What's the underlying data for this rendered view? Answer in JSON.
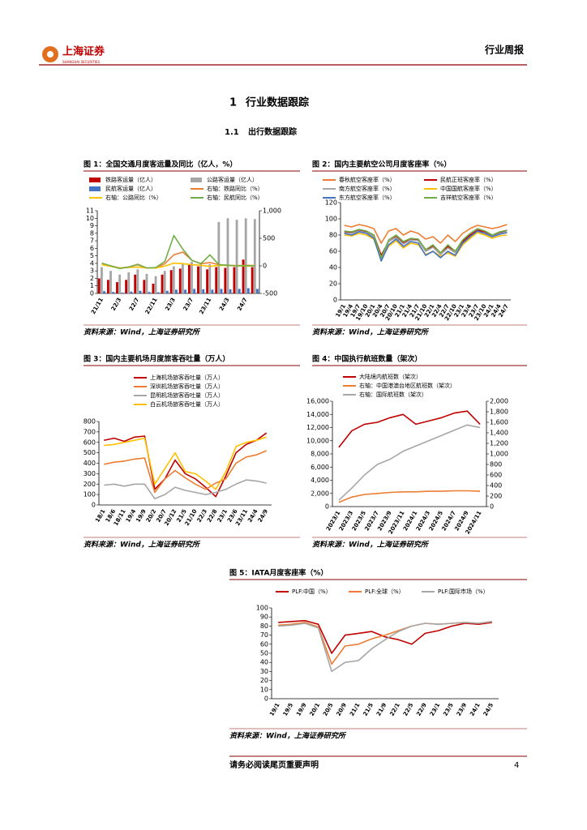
{
  "header": {
    "brand": "上海证券",
    "brand_en": "SHANGHAI SECURITIES",
    "report_type": "行业周报"
  },
  "heading1": {
    "number": "1",
    "text": "行业数据跟踪"
  },
  "heading2": {
    "number": "1.1",
    "text": "出行数据跟踪"
  },
  "figures": [
    {
      "title": "图 1：全国交通月度客运量及同比（亿人，%）",
      "source": "资料来源：Wind，上海证券研究所",
      "chart": {
        "type": "combo",
        "categories": [
          "21/11",
          null,
          "22/3",
          null,
          "22/7",
          null,
          "22/11",
          null,
          "23/3",
          null,
          "23/7",
          null,
          "23/11",
          null,
          "24/3",
          null,
          "24/7",
          null
        ],
        "series": [
          {
            "name": "铁路客运量（亿人）",
            "kind": "bar",
            "color": "#c00000",
            "values": [
              2.0,
              1.8,
              1.5,
              1.8,
              2.5,
              1.8,
              1.3,
              2.5,
              3.1,
              3.3,
              3.8,
              3.6,
              3.2,
              3.5,
              3.4,
              3.5,
              4.5,
              3.5
            ]
          },
          {
            "name": "公路客运量（亿人）",
            "kind": "bar",
            "color": "#a6a6a6",
            "values": [
              3.5,
              3.0,
              2.5,
              2.8,
              3.2,
              2.6,
              2.3,
              3.0,
              3.6,
              3.9,
              4.2,
              4.1,
              3.9,
              9.5,
              10,
              9.8,
              10,
              9.9
            ]
          },
          {
            "name": "民航客运量（亿人）",
            "kind": "bar",
            "color": "#4472c4",
            "values": [
              0.3,
              0.2,
              0.1,
              0.25,
              0.35,
              0.2,
              0.15,
              0.35,
              0.5,
              0.5,
              0.6,
              0.55,
              0.5,
              0.6,
              0.55,
              0.6,
              0.7,
              0.6
            ]
          },
          {
            "name": "右轴：铁路同比（%）",
            "kind": "line",
            "axis": "y2",
            "color": "#ed7d31",
            "values": [
              30,
              0,
              -40,
              -20,
              20,
              -40,
              -40,
              40,
              200,
              250,
              100,
              40,
              60,
              20,
              10,
              5,
              10,
              5
            ]
          },
          {
            "name": "右轴：公路同比（%）",
            "kind": "line",
            "axis": "y2",
            "color": "#ffc000",
            "values": [
              20,
              -10,
              -40,
              -30,
              -20,
              -40,
              -40,
              -5,
              50,
              40,
              20,
              10,
              -10,
              10,
              5,
              0,
              -5,
              0
            ]
          },
          {
            "name": "右轴：民航同比（%）",
            "kind": "line",
            "axis": "y2",
            "color": "#70ad47",
            "values": [
              50,
              0,
              -50,
              -20,
              30,
              -40,
              -30,
              80,
              550,
              300,
              100,
              40,
              200,
              20,
              10,
              0,
              5,
              0
            ]
          }
        ],
        "ylim": [
          0,
          11
        ],
        "yticks": [
          0,
          1,
          2,
          3,
          4,
          5,
          6,
          7,
          8,
          9,
          10,
          11
        ],
        "y2lim": [
          -500,
          1000
        ],
        "y2ticks": [
          -500,
          0,
          500,
          {
            "value": 1000,
            "label": "1,000"
          }
        ]
      }
    },
    {
      "title": "图 2：国内主要航空公司月度客座率（%）",
      "source": "资料来源：Wind，上海证券研究所",
      "chart": {
        "type": "line",
        "categories": [
          "19/1",
          "19/4",
          "19/7",
          "19/10",
          "20/1",
          "20/4",
          "20/7",
          "20/10",
          "21/1",
          "21/4",
          "21/7",
          "21/10",
          "22/1",
          "22/4",
          "22/7",
          "22/10",
          "23/1",
          "23/4",
          "23/7",
          "23/10",
          "24/1",
          "24/4",
          "24/7"
        ],
        "series": [
          {
            "name": "春秋航空客座率（%）",
            "color": "#ed7d31",
            "values": [
              92,
              90,
              93,
              91,
              88,
              70,
              85,
              88,
              80,
              85,
              82,
              75,
              78,
              70,
              80,
              72,
              82,
              88,
              92,
              90,
              88,
              90,
              93
            ]
          },
          {
            "name": "民航正班客座率（%）",
            "color": "#c00000",
            "values": [
              84,
              83,
              86,
              84,
              80,
              55,
              72,
              78,
              70,
              75,
              74,
              62,
              66,
              58,
              66,
              60,
              72,
              80,
              86,
              84,
              80,
              83,
              86
            ]
          },
          {
            "name": "南方航空客座率（%）",
            "color": "#a6a6a6",
            "values": [
              83,
              82,
              85,
              83,
              78,
              52,
              72,
              77,
              69,
              74,
              73,
              60,
              65,
              56,
              64,
              58,
              70,
              78,
              84,
              82,
              78,
              82,
              84
            ]
          },
          {
            "name": "中国国航客座率（%）",
            "color": "#ffc000",
            "values": [
              80,
              79,
              82,
              80,
              75,
              50,
              66,
              73,
              64,
              70,
              68,
              56,
              60,
              54,
              58,
              54,
              68,
              76,
              83,
              80,
              76,
              79,
              80
            ]
          },
          {
            "name": "东方航空客座率（%）",
            "color": "#4472c4",
            "values": [
              82,
              80,
              84,
              82,
              76,
              48,
              68,
              75,
              66,
              72,
              70,
              55,
              60,
              52,
              60,
              55,
              70,
              78,
              85,
              82,
              78,
              81,
              83
            ]
          },
          {
            "name": "吉祥航空客座率（%）",
            "color": "#70ad47",
            "values": [
              85,
              84,
              87,
              85,
              80,
              52,
              74,
              80,
              72,
              76,
              75,
              62,
              68,
              58,
              68,
              60,
              74,
              82,
              88,
              85,
              80,
              84,
              86
            ]
          }
        ],
        "ylim": [
          0,
          120
        ],
        "yticks": [
          0,
          20,
          40,
          60,
          80,
          100,
          120
        ]
      }
    },
    {
      "title": "图 3：国内主要机场月度旅客吞吐量（万人）",
      "source": "资料来源：Wind，上海证券研究所",
      "chart": {
        "type": "line",
        "categories": [
          "18/1",
          "18/6",
          "18/11",
          "19/4",
          "19/9",
          "20/2",
          "20/7",
          "20/12",
          "21/5",
          "21/10",
          "22/3",
          "22/8",
          "23/1",
          "23/6",
          "23/11",
          "24/4",
          "24/9"
        ],
        "series": [
          {
            "name": "上海机场旅客吞吐量（万人）",
            "color": "#c00000",
            "values": [
              620,
              640,
              610,
              650,
              660,
              150,
              250,
              430,
              300,
              250,
              170,
              80,
              280,
              500,
              580,
              620,
              690
            ]
          },
          {
            "name": "深圳机场旅客吞吐量（万人）",
            "color": "#ed7d31",
            "values": [
              390,
              410,
              420,
              440,
              450,
              120,
              250,
              330,
              260,
              200,
              150,
              210,
              250,
              400,
              460,
              480,
              520
            ]
          },
          {
            "name": "昆明机场旅客吞吐量（万人）",
            "color": "#a6a6a6",
            "values": [
              190,
              200,
              180,
              200,
              200,
              60,
              100,
              170,
              140,
              120,
              100,
              120,
              150,
              200,
              240,
              230,
              210
            ]
          },
          {
            "name": "白云机场旅客吞吐量（万人）",
            "color": "#ffc000",
            "values": [
              570,
              580,
              600,
              620,
              640,
              200,
              350,
              500,
              320,
              300,
              230,
              150,
              320,
              560,
              600,
              620,
              650
            ]
          }
        ],
        "ylim": [
          0,
          800
        ],
        "yticks": [
          0,
          100,
          200,
          300,
          400,
          500,
          600,
          700,
          800
        ]
      }
    },
    {
      "title": "图 4：中国执行航班数量（架次）",
      "source": "资料来源：Wind，上海证券研究所",
      "chart": {
        "type": "line",
        "categories": [
          "2023/1",
          "2023/3",
          "2023/5",
          "2023/7",
          "2023/9",
          "2023/11",
          "2024/1",
          "2024/3",
          "2024/5",
          "2024/7",
          "2024/9",
          "2024/11"
        ],
        "series": [
          {
            "name": "大陆境内航班数（架次）",
            "color": "#c00000",
            "values": [
              9000,
              11500,
              12500,
              12800,
              13500,
              14000,
              12500,
              13000,
              13500,
              14200,
              14500,
              12500
            ]
          },
          {
            "name": "右轴：中国港澳台地区航班数（架次）",
            "axis": "y2",
            "color": "#ed7d31",
            "values": [
              80,
              180,
              230,
              250,
              270,
              280,
              280,
              290,
              290,
              300,
              300,
              290
            ]
          },
          {
            "name": "右轴：国际航班数（架次）",
            "axis": "y2",
            "color": "#a6a6a6",
            "values": [
              120,
              350,
              600,
              800,
              900,
              1050,
              1150,
              1250,
              1350,
              1450,
              1550,
              1500
            ]
          }
        ],
        "ylim": [
          0,
          16000
        ],
        "yticks": [
          0,
          {
            "value": 2000,
            "label": "2,000"
          },
          {
            "value": 4000,
            "label": "4,000"
          },
          {
            "value": 6000,
            "label": "6,000"
          },
          {
            "value": 8000,
            "label": "8,000"
          },
          {
            "value": 10000,
            "label": "10,000"
          },
          {
            "value": 12000,
            "label": "12,000"
          },
          {
            "value": 14000,
            "label": "14,000"
          },
          {
            "value": 16000,
            "label": "16,000"
          }
        ],
        "y2lim": [
          0,
          2000
        ],
        "y2ticks": [
          0,
          200,
          400,
          600,
          800,
          {
            "value": 1000,
            "label": "1,000"
          },
          {
            "value": 1200,
            "label": "1,200"
          },
          {
            "value": 1400,
            "label": "1,400"
          },
          {
            "value": 1600,
            "label": "1,600"
          },
          {
            "value": 1800,
            "label": "1,800"
          },
          {
            "value": 2000,
            "label": "2,000"
          }
        ]
      }
    },
    {
      "title": "图 5：IATA月度客座率（%）",
      "source": "资料来源：Wind，上海证券研究所",
      "chart": {
        "type": "line",
        "categories": [
          "19/1",
          "19/5",
          "19/9",
          "20/1",
          "20/5",
          "20/9",
          "21/1",
          "21/5",
          "21/9",
          "22/1",
          "22/5",
          "22/9",
          "23/1",
          "23/5",
          "23/9",
          "24/1",
          "24/5"
        ],
        "series": [
          {
            "name": "PLF:中国（%）",
            "color": "#c00000",
            "values": [
              84,
              85,
              86,
              82,
              50,
              70,
              72,
              74,
              68,
              65,
              60,
              72,
              75,
              80,
              83,
              82,
              84
            ]
          },
          {
            "name": "PLF:全球（%）",
            "color": "#ed7d31",
            "values": [
              81,
              82,
              84,
              79,
              38,
              58,
              60,
              66,
              70,
              75,
              80,
              83,
              82,
              83,
              84,
              83,
              85
            ]
          },
          {
            "name": "PLF:国际市场（%）",
            "color": "#a6a6a6",
            "values": [
              80,
              81,
              83,
              78,
              30,
              40,
              42,
              55,
              65,
              74,
              80,
              83,
              82,
              83,
              84,
              83,
              85
            ]
          }
        ],
        "ylim": [
          0,
          100
        ],
        "yticks": [
          0,
          10,
          20,
          30,
          40,
          50,
          60,
          70,
          80,
          90,
          100
        ]
      }
    }
  ],
  "footer": {
    "notice": "请务必阅读尾页重要声明",
    "page": "4"
  }
}
